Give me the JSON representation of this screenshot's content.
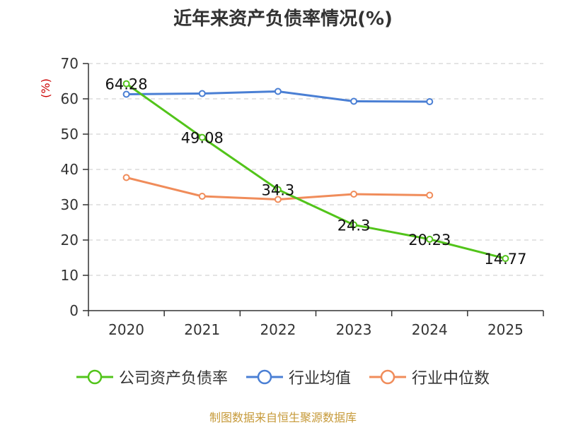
{
  "chart_data": {
    "type": "line",
    "title": "近年来资产负债率情况(%)",
    "ylabel": "(%)",
    "xlabel": "",
    "categories": [
      "2020",
      "2021",
      "2022",
      "2023",
      "2024",
      "2025"
    ],
    "ylim": [
      0,
      70
    ],
    "yticks": [
      0,
      10,
      20,
      30,
      40,
      50,
      60,
      70
    ],
    "grid": true,
    "legend_position": "bottom",
    "series": [
      {
        "name": "公司资产负债率",
        "color": "#52c41a",
        "values": [
          64.28,
          49.08,
          34.3,
          24.3,
          20.23,
          14.77
        ],
        "labels": [
          "64.28",
          "49.08",
          "34.3",
          "24.3",
          "20.23",
          "14.77"
        ]
      },
      {
        "name": "行业均值",
        "color": "#4a7fd4",
        "values": [
          61.3,
          61.5,
          62.1,
          59.3,
          59.2,
          null
        ]
      },
      {
        "name": "行业中位数",
        "color": "#f08c5a",
        "values": [
          37.7,
          32.4,
          31.5,
          33.0,
          32.7,
          null
        ]
      }
    ]
  },
  "source": "制图数据来自恒生聚源数据库"
}
